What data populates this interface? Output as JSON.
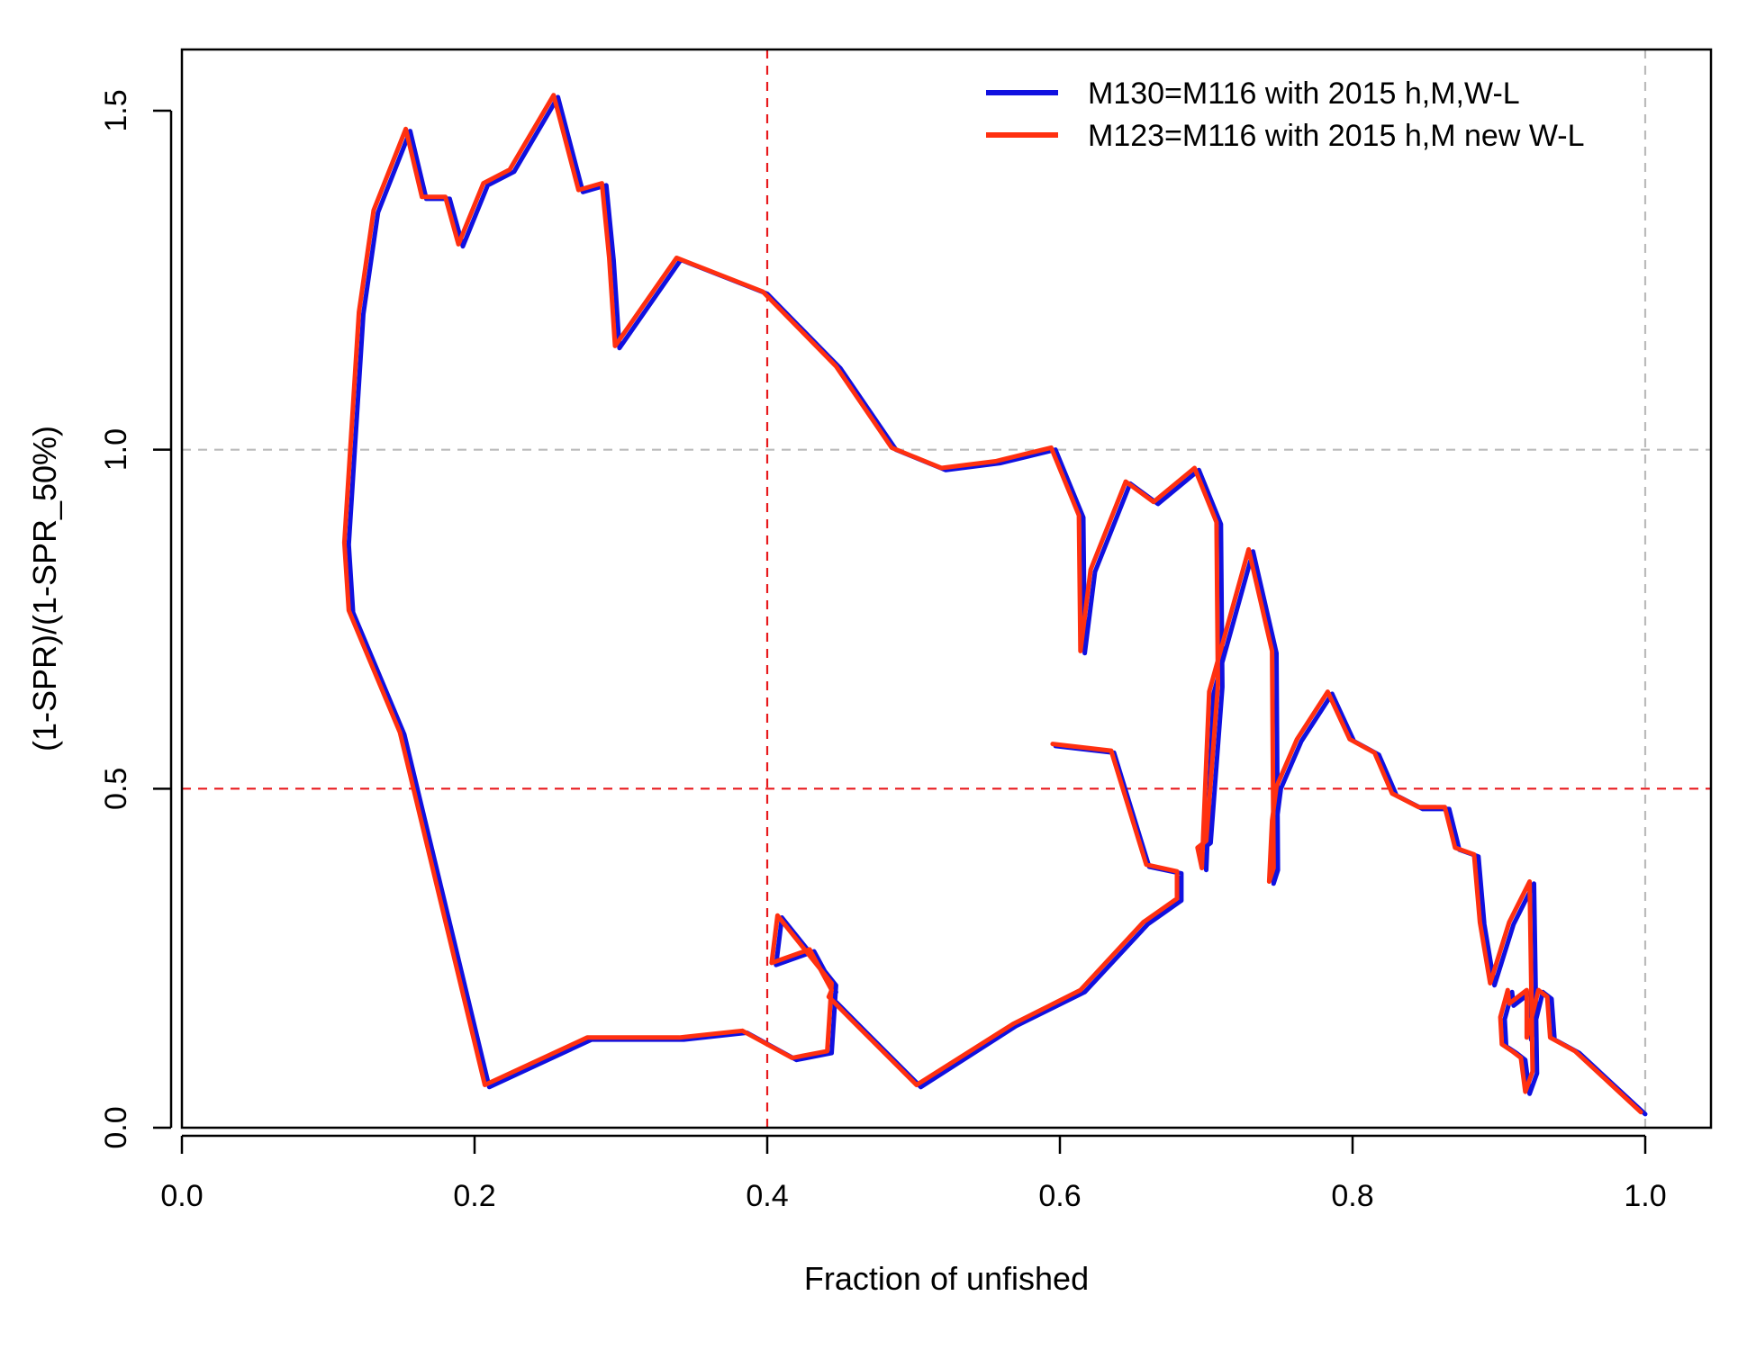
{
  "chart_data": {
    "type": "line",
    "title": "",
    "xlabel": "Fraction of unfished",
    "ylabel": "(1-SPR)/(1-SPR_50%)",
    "xlim": [
      0,
      1.05
    ],
    "ylim": [
      0,
      1.6
    ],
    "x_ticks": [
      "0.0",
      "0.2",
      "0.4",
      "0.6",
      "0.8",
      "1.0"
    ],
    "y_ticks": [
      "0.0",
      "0.5",
      "1.0",
      "1.5"
    ],
    "legend_position": "top-right",
    "reference_lines": [
      {
        "axis": "x",
        "value": 0.4,
        "color": "#e8191c",
        "style": "dashed"
      },
      {
        "axis": "y",
        "value": 0.5,
        "color": "#e8191c",
        "style": "dashed"
      },
      {
        "axis": "x",
        "value": 1.0,
        "color": "#bbbbbb",
        "style": "dashed"
      },
      {
        "axis": "y",
        "value": 1.0,
        "color": "#bbbbbb",
        "style": "dashed"
      }
    ],
    "series": [
      {
        "name": "M130=M116 with 2015 h,M,W-L",
        "color": "#1010e0",
        "points": [
          [
            0.597,
            0.563
          ],
          [
            0.637,
            0.553
          ],
          [
            0.661,
            0.385
          ],
          [
            0.683,
            0.375
          ],
          [
            0.683,
            0.335
          ],
          [
            0.66,
            0.3
          ],
          [
            0.617,
            0.2
          ],
          [
            0.57,
            0.15
          ],
          [
            0.505,
            0.06
          ],
          [
            0.461,
            0.155
          ],
          [
            0.445,
            0.19
          ],
          [
            0.447,
            0.2
          ],
          [
            0.432,
            0.26
          ],
          [
            0.406,
            0.24
          ],
          [
            0.41,
            0.31
          ],
          [
            0.447,
            0.21
          ],
          [
            0.444,
            0.11
          ],
          [
            0.42,
            0.1
          ],
          [
            0.386,
            0.14
          ],
          [
            0.343,
            0.13
          ],
          [
            0.28,
            0.13
          ],
          [
            0.21,
            0.06
          ],
          [
            0.152,
            0.58
          ],
          [
            0.117,
            0.76
          ],
          [
            0.114,
            0.86
          ],
          [
            0.124,
            1.2
          ],
          [
            0.134,
            1.35
          ],
          [
            0.156,
            1.47
          ],
          [
            0.167,
            1.37
          ],
          [
            0.183,
            1.37
          ],
          [
            0.192,
            1.3
          ],
          [
            0.209,
            1.39
          ],
          [
            0.227,
            1.41
          ],
          [
            0.257,
            1.52
          ],
          [
            0.274,
            1.38
          ],
          [
            0.29,
            1.39
          ],
          [
            0.295,
            1.28
          ],
          [
            0.299,
            1.15
          ],
          [
            0.341,
            1.28
          ],
          [
            0.4,
            1.23
          ],
          [
            0.45,
            1.12
          ],
          [
            0.488,
            1.0
          ],
          [
            0.522,
            0.97
          ],
          [
            0.559,
            0.98
          ],
          [
            0.597,
            1.0
          ],
          [
            0.616,
            0.9
          ],
          [
            0.617,
            0.7
          ],
          [
            0.624,
            0.82
          ],
          [
            0.648,
            0.95
          ],
          [
            0.667,
            0.92
          ],
          [
            0.695,
            0.97
          ],
          [
            0.71,
            0.89
          ],
          [
            0.711,
            0.65
          ],
          [
            0.703,
            0.42
          ],
          [
            0.697,
            0.41
          ],
          [
            0.7,
            0.38
          ],
          [
            0.705,
            0.64
          ],
          [
            0.732,
            0.85
          ],
          [
            0.748,
            0.7
          ],
          [
            0.749,
            0.38
          ],
          [
            0.746,
            0.36
          ],
          [
            0.748,
            0.45
          ],
          [
            0.751,
            0.5
          ],
          [
            0.765,
            0.57
          ],
          [
            0.786,
            0.64
          ],
          [
            0.801,
            0.57
          ],
          [
            0.818,
            0.55
          ],
          [
            0.83,
            0.49
          ],
          [
            0.848,
            0.47
          ],
          [
            0.866,
            0.47
          ],
          [
            0.873,
            0.41
          ],
          [
            0.886,
            0.4
          ],
          [
            0.89,
            0.3
          ],
          [
            0.897,
            0.21
          ],
          [
            0.91,
            0.3
          ],
          [
            0.924,
            0.36
          ],
          [
            0.926,
            0.08
          ],
          [
            0.921,
            0.05
          ],
          [
            0.918,
            0.1
          ],
          [
            0.912,
            0.11
          ],
          [
            0.905,
            0.12
          ],
          [
            0.904,
            0.16
          ],
          [
            0.909,
            0.2
          ],
          [
            0.91,
            0.18
          ],
          [
            0.916,
            0.19
          ],
          [
            0.922,
            0.2
          ],
          [
            0.922,
            0.13
          ],
          [
            0.93,
            0.2
          ],
          [
            0.936,
            0.19
          ],
          [
            0.938,
            0.13
          ],
          [
            0.955,
            0.11
          ],
          [
            0.98,
            0.06
          ],
          [
            1.0,
            0.02
          ]
        ]
      },
      {
        "name": "M123=M116 with 2015 h,M new W-L",
        "color": "#ff3010",
        "points": [
          [
            0.595,
            0.566
          ],
          [
            0.635,
            0.556
          ],
          [
            0.659,
            0.388
          ],
          [
            0.68,
            0.378
          ],
          [
            0.68,
            0.338
          ],
          [
            0.657,
            0.303
          ],
          [
            0.614,
            0.203
          ],
          [
            0.568,
            0.153
          ],
          [
            0.502,
            0.063
          ],
          [
            0.458,
            0.158
          ],
          [
            0.442,
            0.193
          ],
          [
            0.444,
            0.203
          ],
          [
            0.429,
            0.263
          ],
          [
            0.403,
            0.243
          ],
          [
            0.407,
            0.313
          ],
          [
            0.444,
            0.213
          ],
          [
            0.441,
            0.113
          ],
          [
            0.417,
            0.103
          ],
          [
            0.383,
            0.143
          ],
          [
            0.34,
            0.133
          ],
          [
            0.277,
            0.133
          ],
          [
            0.207,
            0.063
          ],
          [
            0.149,
            0.583
          ],
          [
            0.114,
            0.763
          ],
          [
            0.111,
            0.863
          ],
          [
            0.121,
            1.203
          ],
          [
            0.131,
            1.353
          ],
          [
            0.153,
            1.473
          ],
          [
            0.164,
            1.373
          ],
          [
            0.18,
            1.373
          ],
          [
            0.189,
            1.303
          ],
          [
            0.206,
            1.393
          ],
          [
            0.224,
            1.413
          ],
          [
            0.254,
            1.523
          ],
          [
            0.271,
            1.383
          ],
          [
            0.287,
            1.393
          ],
          [
            0.292,
            1.283
          ],
          [
            0.296,
            1.153
          ],
          [
            0.338,
            1.283
          ],
          [
            0.397,
            1.233
          ],
          [
            0.447,
            1.123
          ],
          [
            0.485,
            1.003
          ],
          [
            0.519,
            0.973
          ],
          [
            0.556,
            0.983
          ],
          [
            0.594,
            1.003
          ],
          [
            0.613,
            0.903
          ],
          [
            0.614,
            0.703
          ],
          [
            0.621,
            0.823
          ],
          [
            0.645,
            0.953
          ],
          [
            0.664,
            0.923
          ],
          [
            0.692,
            0.973
          ],
          [
            0.707,
            0.893
          ],
          [
            0.708,
            0.653
          ],
          [
            0.7,
            0.423
          ],
          [
            0.694,
            0.413
          ],
          [
            0.697,
            0.383
          ],
          [
            0.702,
            0.643
          ],
          [
            0.729,
            0.853
          ],
          [
            0.745,
            0.703
          ],
          [
            0.746,
            0.383
          ],
          [
            0.743,
            0.363
          ],
          [
            0.745,
            0.453
          ],
          [
            0.748,
            0.503
          ],
          [
            0.762,
            0.573
          ],
          [
            0.783,
            0.643
          ],
          [
            0.798,
            0.573
          ],
          [
            0.815,
            0.553
          ],
          [
            0.827,
            0.493
          ],
          [
            0.845,
            0.473
          ],
          [
            0.863,
            0.473
          ],
          [
            0.87,
            0.413
          ],
          [
            0.883,
            0.403
          ],
          [
            0.887,
            0.303
          ],
          [
            0.894,
            0.213
          ],
          [
            0.907,
            0.303
          ],
          [
            0.921,
            0.363
          ],
          [
            0.923,
            0.083
          ],
          [
            0.918,
            0.053
          ],
          [
            0.915,
            0.103
          ],
          [
            0.909,
            0.113
          ],
          [
            0.902,
            0.123
          ],
          [
            0.901,
            0.163
          ],
          [
            0.906,
            0.203
          ],
          [
            0.907,
            0.183
          ],
          [
            0.913,
            0.193
          ],
          [
            0.919,
            0.203
          ],
          [
            0.919,
            0.133
          ],
          [
            0.927,
            0.203
          ],
          [
            0.933,
            0.193
          ],
          [
            0.935,
            0.133
          ],
          [
            0.952,
            0.113
          ],
          [
            0.977,
            0.063
          ],
          [
            0.997,
            0.023
          ]
        ]
      }
    ]
  }
}
